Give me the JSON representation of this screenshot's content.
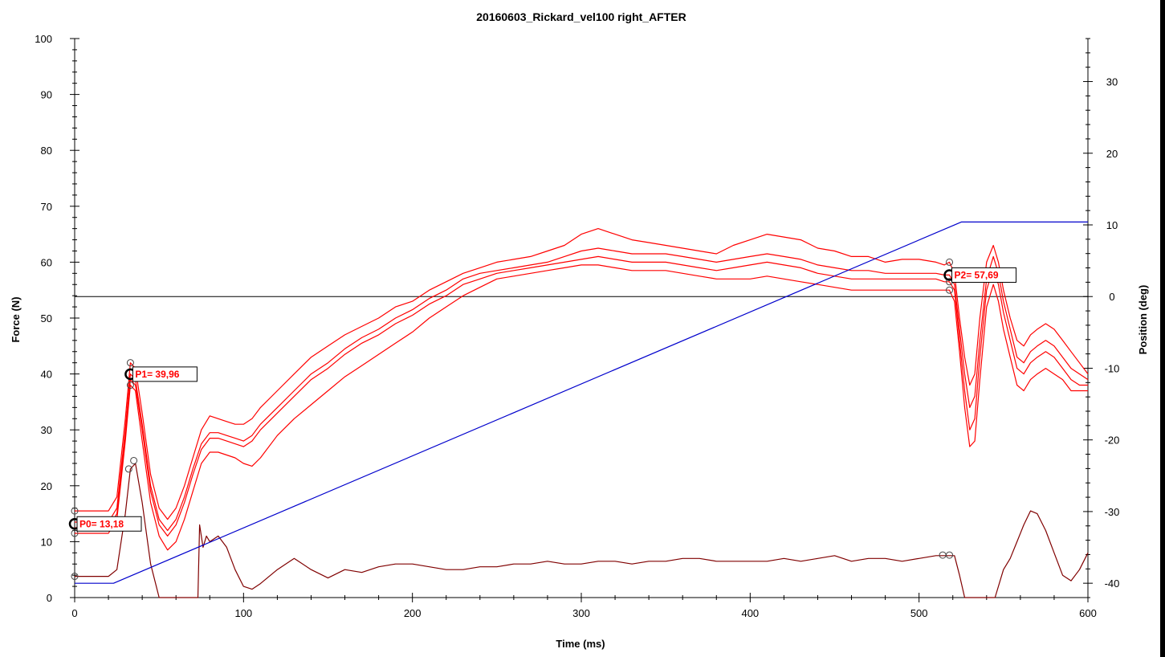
{
  "chart_data": {
    "type": "line",
    "title": "20160603_Rickard_vel100 right_AFTER",
    "xlabel": "Time (ms)",
    "ylabel": "Force (N)",
    "y2label": "Position (deg)",
    "xlim": [
      0,
      600
    ],
    "ylim": [
      0,
      100
    ],
    "y2lim": [
      -42,
      36
    ],
    "xticks": [
      "0",
      "100",
      "200",
      "300",
      "400",
      "500",
      "600"
    ],
    "yticks": [
      "0",
      "10",
      "20",
      "30",
      "40",
      "50",
      "60",
      "70",
      "80",
      "90",
      "100"
    ],
    "y2ticks": [
      "-40",
      "-30",
      "-20",
      "-10",
      "0",
      "10",
      "20",
      "30"
    ],
    "grid": false,
    "colors": {
      "force": "#ff0000",
      "position": "#0000cc",
      "derived": "#800000",
      "reference": "#000000"
    },
    "reference_line": {
      "axis": "y2",
      "value": 0
    },
    "series": [
      {
        "axis": "y",
        "color": "#ff0000",
        "x": [
          0,
          20,
          25,
          30,
          33,
          36,
          40,
          45,
          50,
          55,
          60,
          65,
          70,
          75,
          80,
          85,
          90,
          95,
          100,
          105,
          110,
          120,
          130,
          140,
          150,
          160,
          170,
          180,
          190,
          200,
          210,
          220,
          230,
          240,
          250,
          260,
          270,
          280,
          290,
          300,
          310,
          320,
          330,
          340,
          350,
          360,
          370,
          380,
          390,
          400,
          410,
          420,
          430,
          440,
          450,
          460,
          470,
          480,
          490,
          500,
          510,
          515,
          518,
          521,
          524,
          527,
          530,
          533,
          536,
          540,
          544,
          547,
          550,
          554,
          558,
          562,
          566,
          570,
          575,
          580,
          585,
          590,
          595,
          600
        ],
        "values": [
          15.5,
          15.5,
          18,
          32,
          42,
          41,
          33,
          22,
          16,
          14,
          16,
          20,
          25,
          30,
          32.5,
          32,
          31.5,
          31,
          31,
          32,
          34,
          37,
          40,
          43,
          45,
          47,
          48.5,
          50,
          52,
          53,
          55,
          56.5,
          58,
          59,
          60,
          60.5,
          61,
          62,
          63,
          65,
          66,
          65,
          64,
          63.5,
          63,
          62.5,
          62,
          61.5,
          63,
          64,
          65,
          64.5,
          64,
          62.5,
          62,
          61,
          61,
          60,
          60.5,
          60.5,
          60,
          59.5,
          60,
          58,
          50,
          43,
          38,
          40,
          50,
          60,
          63,
          60,
          55,
          50,
          46,
          45,
          47,
          48,
          49,
          48,
          46,
          44,
          42,
          40
        ]
      },
      {
        "axis": "y",
        "color": "#ff0000",
        "x": [
          0,
          20,
          25,
          30,
          33,
          36,
          40,
          45,
          50,
          55,
          60,
          65,
          70,
          75,
          80,
          85,
          90,
          95,
          100,
          105,
          110,
          120,
          130,
          140,
          150,
          160,
          170,
          180,
          190,
          200,
          210,
          220,
          230,
          240,
          250,
          260,
          270,
          280,
          290,
          300,
          310,
          320,
          330,
          340,
          350,
          360,
          370,
          380,
          390,
          400,
          410,
          420,
          430,
          440,
          450,
          460,
          470,
          480,
          490,
          500,
          510,
          515,
          518,
          521,
          524,
          527,
          530,
          533,
          536,
          540,
          544,
          547,
          550,
          554,
          558,
          562,
          566,
          570,
          575,
          580,
          585,
          590,
          595,
          600
        ],
        "values": [
          13.5,
          13.5,
          16,
          30,
          40,
          39,
          31,
          20,
          14,
          12,
          14,
          18,
          23,
          27.5,
          29.5,
          29.5,
          29,
          28.5,
          28,
          29,
          31,
          34,
          37,
          40,
          42,
          44.5,
          46.5,
          48,
          50,
          51.5,
          53.5,
          55,
          57,
          58,
          58.5,
          59,
          59.5,
          60,
          61,
          62,
          62.5,
          62,
          61.5,
          61.5,
          61.5,
          61,
          60.5,
          60,
          60.5,
          61,
          61.5,
          61,
          60.5,
          59.5,
          59,
          58.5,
          58.5,
          58,
          58,
          58,
          58,
          57.7,
          57.7,
          56,
          48,
          40,
          34,
          36,
          46,
          57,
          61,
          58,
          53,
          48,
          43,
          42,
          44,
          45,
          46,
          45,
          43,
          41,
          40,
          39
        ]
      },
      {
        "axis": "y",
        "color": "#ff0000",
        "x": [
          0,
          20,
          25,
          30,
          33,
          36,
          40,
          45,
          50,
          55,
          60,
          65,
          70,
          75,
          80,
          85,
          90,
          95,
          100,
          105,
          110,
          120,
          130,
          140,
          150,
          160,
          170,
          180,
          190,
          200,
          210,
          220,
          230,
          240,
          250,
          260,
          270,
          280,
          290,
          300,
          310,
          320,
          330,
          340,
          350,
          360,
          370,
          380,
          390,
          400,
          410,
          420,
          430,
          440,
          450,
          460,
          470,
          480,
          490,
          500,
          510,
          515,
          518,
          521,
          524,
          527,
          530,
          533,
          536,
          540,
          544,
          547,
          550,
          554,
          558,
          562,
          566,
          570,
          575,
          580,
          585,
          590,
          595,
          600
        ],
        "values": [
          12.5,
          12.5,
          15,
          29,
          39,
          38,
          30,
          19,
          13,
          11,
          13,
          17,
          22,
          26.5,
          28.5,
          28.5,
          28,
          27.5,
          27,
          28,
          30,
          33,
          36,
          39,
          41,
          43.5,
          45.5,
          47,
          49,
          50.5,
          52.5,
          54,
          56,
          57,
          58,
          58.5,
          59,
          59.5,
          60,
          60.5,
          61,
          60.5,
          60,
          60,
          60,
          59.5,
          59,
          58.5,
          59,
          59.5,
          60,
          59.5,
          59,
          58,
          57.5,
          57,
          57,
          57,
          57,
          57,
          57,
          56.5,
          56.5,
          55,
          46,
          37,
          30,
          32,
          43,
          55,
          59,
          56,
          51,
          46,
          41,
          40,
          42,
          43,
          44,
          43,
          41,
          39,
          38,
          38
        ]
      },
      {
        "axis": "y",
        "color": "#ff0000",
        "x": [
          0,
          20,
          25,
          30,
          33,
          36,
          40,
          45,
          50,
          55,
          60,
          65,
          70,
          75,
          80,
          85,
          90,
          95,
          100,
          105,
          110,
          120,
          130,
          140,
          150,
          160,
          170,
          180,
          190,
          200,
          210,
          220,
          230,
          240,
          250,
          260,
          270,
          280,
          290,
          300,
          310,
          320,
          330,
          340,
          350,
          360,
          370,
          380,
          390,
          400,
          410,
          420,
          430,
          440,
          450,
          460,
          470,
          480,
          490,
          500,
          510,
          515,
          518,
          521,
          524,
          527,
          530,
          533,
          536,
          540,
          544,
          547,
          550,
          554,
          558,
          562,
          566,
          570,
          575,
          580,
          585,
          590,
          595,
          600
        ],
        "values": [
          11.5,
          11.5,
          14,
          28,
          38,
          37,
          28,
          17,
          11,
          8.5,
          10,
          14,
          19,
          24,
          26,
          26,
          25.5,
          25,
          24,
          23.5,
          25,
          29,
          32,
          34.5,
          37,
          39.5,
          41.5,
          43.5,
          45.5,
          47.5,
          50,
          52,
          54,
          55.5,
          57,
          57.5,
          58,
          58.5,
          59,
          59.5,
          59.5,
          59,
          58.5,
          58.5,
          58.5,
          58,
          57.5,
          57,
          57,
          57,
          57.5,
          57,
          56.5,
          56,
          55.5,
          55,
          55,
          55,
          55,
          55,
          55,
          55,
          55,
          53,
          44,
          34,
          27,
          28,
          39,
          52,
          56,
          53,
          48,
          43,
          38,
          37,
          39,
          40,
          41,
          40,
          39,
          37,
          37,
          37
        ]
      },
      {
        "axis": "y",
        "color": "#800000",
        "x": [
          0,
          20,
          25,
          30,
          33,
          36,
          40,
          45,
          50,
          55,
          60,
          65,
          70,
          73,
          74,
          76,
          78,
          80,
          85,
          90,
          95,
          100,
          105,
          110,
          120,
          130,
          140,
          150,
          160,
          170,
          180,
          190,
          200,
          210,
          220,
          230,
          240,
          250,
          260,
          270,
          280,
          290,
          300,
          310,
          320,
          330,
          340,
          350,
          360,
          370,
          380,
          390,
          400,
          410,
          420,
          430,
          440,
          450,
          460,
          470,
          480,
          490,
          500,
          510,
          515,
          518,
          521,
          524,
          527,
          530,
          535,
          540,
          545,
          550,
          554,
          558,
          562,
          566,
          570,
          575,
          580,
          585,
          590,
          595,
          600
        ],
        "values": [
          3.8,
          3.8,
          5,
          15,
          23,
          24,
          17,
          6,
          0,
          0,
          0,
          0,
          0,
          0,
          13,
          9,
          11,
          10,
          11,
          9,
          5,
          2,
          1.5,
          2.5,
          5,
          7,
          5,
          3.5,
          5,
          4.5,
          5.5,
          6,
          6,
          5.5,
          5,
          5,
          5.5,
          5.5,
          6,
          6,
          6.5,
          6,
          6,
          6.5,
          6.5,
          6,
          6.5,
          6.5,
          7,
          7,
          6.5,
          6.5,
          6.5,
          6.5,
          7,
          6.5,
          7,
          7.5,
          6.5,
          7,
          7,
          6.5,
          7,
          7.5,
          7.5,
          7.5,
          7.5,
          4,
          0,
          0,
          0,
          0,
          0,
          5,
          7,
          10,
          13,
          15.5,
          15,
          12,
          8,
          4,
          3,
          5,
          8
        ]
      },
      {
        "axis": "y2",
        "color": "#0000cc",
        "x": [
          0,
          23,
          520,
          525,
          600
        ],
        "values": [
          -40,
          -40,
          9.9,
          10.4,
          10.4
        ]
      }
    ],
    "markers": [
      {
        "x": 0,
        "y": 13.18,
        "label": "P0= 13,18"
      },
      {
        "x": 33,
        "y": 39.96,
        "label": "P1= 39,96"
      },
      {
        "x": 518,
        "y": 57.69,
        "label": "P2= 57,69"
      }
    ],
    "small_markers": [
      {
        "x": 0,
        "y": 15.5
      },
      {
        "x": 0,
        "y": 11.5
      },
      {
        "x": 0,
        "y": 3.8
      },
      {
        "x": 33,
        "y": 42
      },
      {
        "x": 33,
        "y": 38
      },
      {
        "x": 32,
        "y": 23
      },
      {
        "x": 35,
        "y": 24.5
      },
      {
        "x": 518,
        "y": 60
      },
      {
        "x": 518,
        "y": 56.5
      },
      {
        "x": 518,
        "y": 55
      },
      {
        "x": 514,
        "y": 7.6
      },
      {
        "x": 518,
        "y": 7.6
      }
    ]
  }
}
